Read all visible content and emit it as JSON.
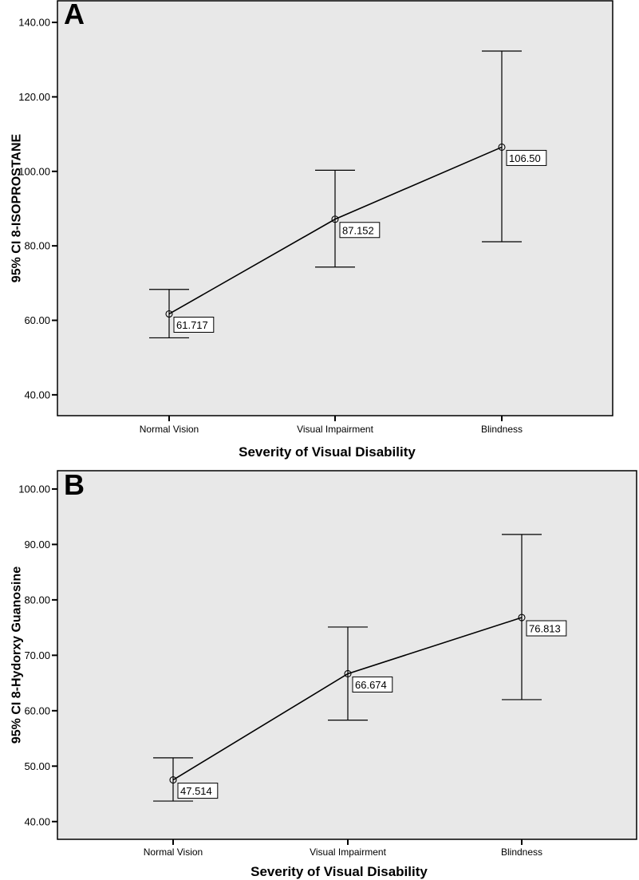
{
  "colors": {
    "plot_background": "#e8e8e8",
    "line": "#000000",
    "page_background": "#ffffff"
  },
  "chart_data": [
    {
      "type": "line",
      "panel_label": "A",
      "title": "",
      "xlabel": "Severity of Visual Disability",
      "ylabel": "95% CI 8-ISOPROSTANE",
      "categories": [
        "Normal Vision",
        "Visual Impairment",
        "Blindness"
      ],
      "means": [
        61.717,
        87.152,
        106.5
      ],
      "mean_labels": [
        "61.717",
        "87.152",
        "106.50"
      ],
      "ci_lower": [
        55.3,
        74.3,
        81.1
      ],
      "ci_upper": [
        68.3,
        100.3,
        132.3
      ],
      "yticks": [
        40,
        60,
        80,
        100,
        120,
        140
      ],
      "ytick_labels": [
        "40.00",
        "60.00",
        "80.00",
        "100.00",
        "120.00",
        "140.00"
      ],
      "ylim": [
        34.4,
        145.8
      ],
      "grid": false,
      "legend": "none"
    },
    {
      "type": "line",
      "panel_label": "B",
      "title": "",
      "xlabel": "Severity of Visual Disability",
      "ylabel": "95% CI 8-Hydorxy Guanosine",
      "categories": [
        "Normal Vision",
        "Visual Impairment",
        "Blindness"
      ],
      "means": [
        47.514,
        66.674,
        76.813
      ],
      "mean_labels": [
        "47.514",
        "66.674",
        "76.813"
      ],
      "ci_lower": [
        43.7,
        58.3,
        62.0
      ],
      "ci_upper": [
        51.5,
        75.1,
        91.8
      ],
      "yticks": [
        40,
        50,
        60,
        70,
        80,
        90,
        100
      ],
      "ytick_labels": [
        "40.00",
        "50.00",
        "60.00",
        "70.00",
        "80.00",
        "90.00",
        "100.00"
      ],
      "ylim": [
        36.8,
        103.3
      ],
      "grid": false,
      "legend": "none"
    }
  ]
}
